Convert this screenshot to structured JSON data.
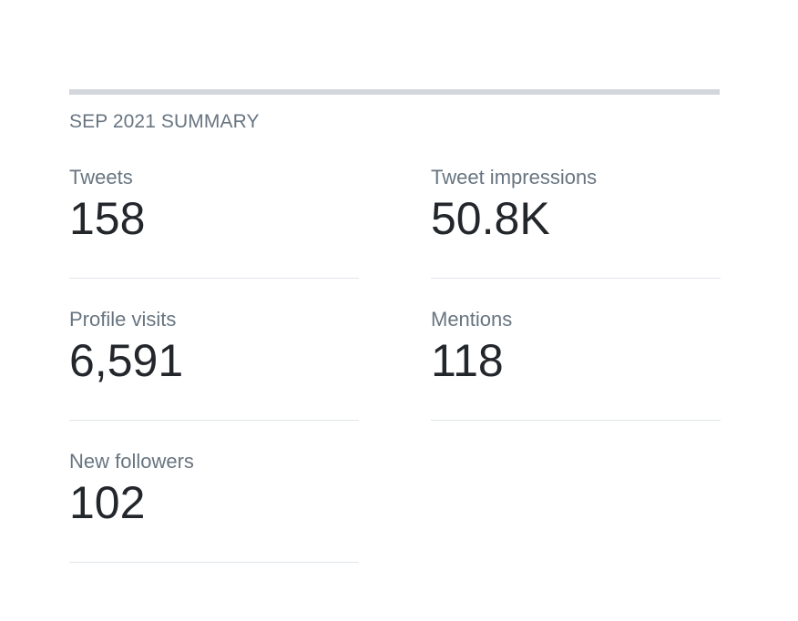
{
  "summary": {
    "title": "SEP 2021 SUMMARY",
    "stats": [
      {
        "label": "Tweets",
        "value": "158"
      },
      {
        "label": "Tweet impressions",
        "value": "50.8K"
      },
      {
        "label": "Profile visits",
        "value": "6,591"
      },
      {
        "label": "Mentions",
        "value": "118"
      },
      {
        "label": "New followers",
        "value": "102"
      }
    ]
  }
}
